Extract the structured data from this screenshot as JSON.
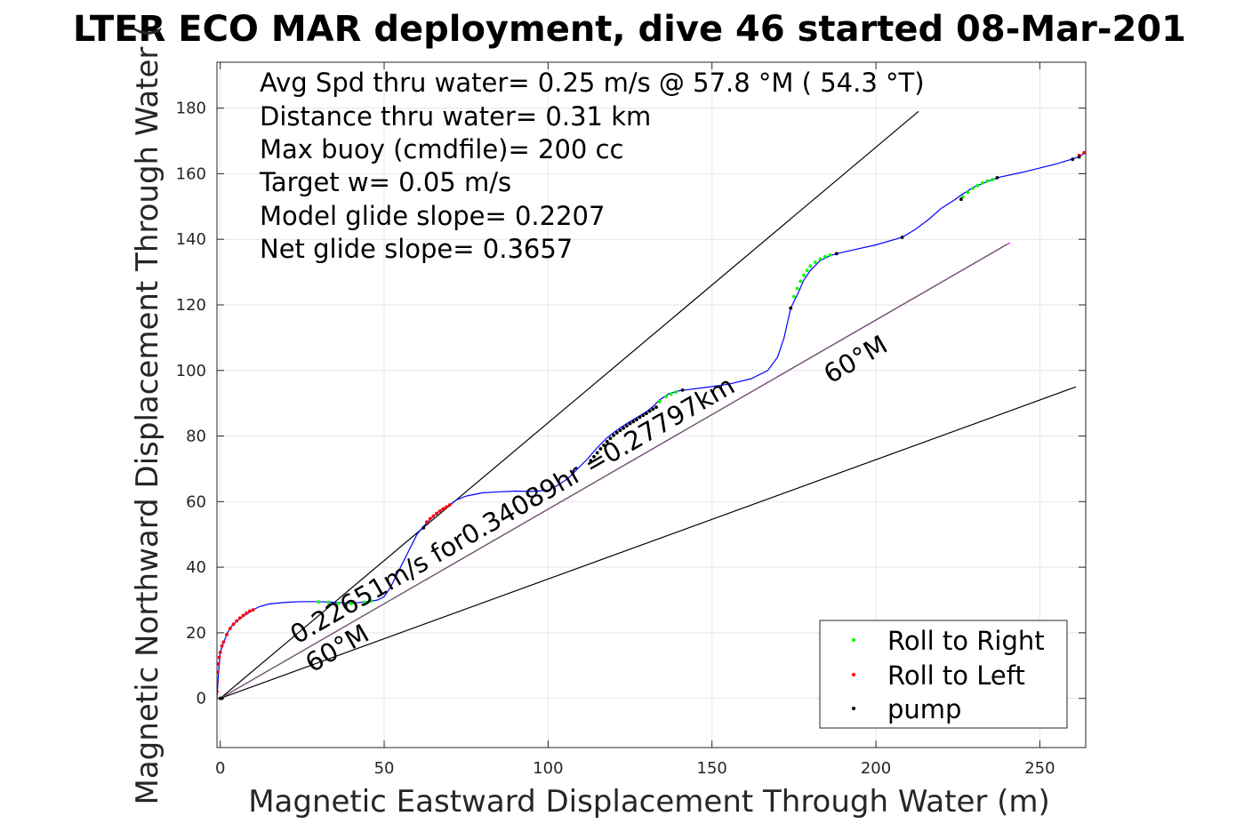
{
  "chart_data": {
    "type": "line",
    "title": "LTER ECO MAR deployment, dive 46 started 08-Mar-201",
    "xlabel": "Magnetic Eastward Displacement Through Water (m)",
    "ylabel": "Magnetic Northward Displacement Through Water (",
    "xlim": [
      -1,
      264
    ],
    "ylim": [
      -15,
      194
    ],
    "xticks": [
      0,
      50,
      100,
      150,
      200,
      250
    ],
    "yticks": [
      0,
      20,
      40,
      60,
      80,
      100,
      120,
      140,
      160,
      180
    ],
    "grid": true,
    "annotations": [
      "Avg Spd thru water=  0.25 m/s @  57.8 °M ( 54.3 °T)",
      "Distance thru water=  0.31 km",
      "Max buoy (cmdfile)= 200 cc",
      "Target w= 0.05 m/s",
      "Model glide slope= 0.2207",
      "Net glide slope= 0.3657"
    ],
    "rotated_labels": {
      "speed": "0.22651m/s for0.34089hr =0.27797km",
      "heading_upper": "60°M",
      "heading_lower": "60°M"
    },
    "legend": {
      "position": "bottom-right",
      "entries": [
        "Roll to Right",
        "Roll to Left",
        "pump"
      ],
      "colors": [
        "#00ff00",
        "#ff0000",
        "#000000"
      ]
    },
    "reference_lines": [
      {
        "x": [
          0,
          213
        ],
        "y": [
          0,
          179
        ],
        "color": "#000000"
      },
      {
        "x": [
          0,
          261
        ],
        "y": [
          0,
          95
        ],
        "color": "#000000"
      },
      {
        "x": [
          0,
          241
        ],
        "y": [
          0,
          139
        ],
        "color": "#ff00ff"
      },
      {
        "x": [
          0,
          240
        ],
        "y": [
          0,
          138.5
        ],
        "color": "#5a5a5a"
      }
    ],
    "track": {
      "color": "#0000ff",
      "x": [
        -1,
        -0.5,
        0,
        1,
        2,
        3,
        5,
        7,
        9,
        10,
        12,
        15,
        20,
        25,
        30,
        35,
        40,
        45,
        48,
        50,
        52,
        55,
        58,
        60,
        62,
        65,
        67,
        70,
        72,
        75,
        80,
        85,
        90,
        95,
        100,
        103,
        106,
        109,
        112,
        115,
        118,
        121,
        124,
        127,
        130,
        132,
        134,
        137,
        140,
        143,
        148,
        155,
        162,
        167,
        170,
        172,
        174,
        176,
        178,
        180,
        183,
        186,
        188,
        192,
        200,
        208,
        212,
        216,
        220,
        224,
        226,
        230,
        235,
        238,
        245,
        255,
        260,
        262,
        264
      ],
      "y": [
        0,
        8,
        14,
        17,
        19.5,
        21.5,
        23.5,
        25,
        26.3,
        27,
        28,
        28.8,
        29.3,
        29.5,
        29.5,
        29.3,
        29,
        29.5,
        30,
        31,
        34,
        40,
        46,
        50,
        52.5,
        55.5,
        57.3,
        59,
        60.5,
        61.7,
        62.7,
        63,
        63.2,
        63.1,
        63.5,
        65,
        67,
        70,
        73,
        76.5,
        79.5,
        81.8,
        83.8,
        85.6,
        87.4,
        89,
        91,
        93,
        93.8,
        94.2,
        94.8,
        95.8,
        97.5,
        100,
        104,
        110,
        119,
        123,
        127.5,
        130.5,
        133.5,
        135,
        135.6,
        136.5,
        138.3,
        140.6,
        143,
        146,
        149.5,
        152,
        153.5,
        156,
        158,
        159,
        160.5,
        163,
        164.5,
        165.2,
        166.5
      ]
    },
    "points": {
      "roll_right": {
        "color": "#00ff00",
        "x": [
          30,
          33,
          36,
          40,
          44,
          46,
          134,
          136,
          137.5,
          139,
          175,
          176,
          177,
          178,
          179,
          180,
          181.5,
          183,
          184.5,
          186,
          226.5,
          228,
          229.5,
          231,
          232.5,
          234,
          235.5
        ],
        "y": [
          29.4,
          29.3,
          29,
          28.9,
          29.3,
          29.7,
          90.5,
          92,
          92.8,
          93.4,
          122.5,
          125,
          127.2,
          129,
          130.5,
          131.8,
          133,
          134,
          134.7,
          135.2,
          153,
          154.3,
          155.5,
          156.4,
          157.2,
          157.8,
          158.2
        ]
      },
      "roll_left": {
        "color": "#ff0000",
        "x": [
          -1,
          -1,
          -0.8,
          -0.6,
          -0.3,
          0,
          0.5,
          1,
          2,
          3,
          4,
          5,
          6,
          7,
          8,
          9,
          10,
          63,
          64,
          65,
          66,
          67,
          68,
          69,
          70,
          262,
          263.5
        ],
        "y": [
          2,
          5,
          8,
          10.5,
          12.5,
          14,
          16,
          17.2,
          19.5,
          21.3,
          22.6,
          23.6,
          24.5,
          25.3,
          26,
          26.6,
          27,
          53.8,
          54.8,
          55.6,
          56.4,
          57.1,
          57.8,
          58.4,
          59,
          165.6,
          166.4
        ]
      },
      "pump": {
        "color": "#000000",
        "x": [
          0,
          0.5,
          62,
          113,
          114,
          115,
          116,
          117,
          118,
          119,
          120,
          121,
          122,
          123,
          124,
          125,
          126,
          127,
          128,
          129,
          130,
          131,
          132,
          133,
          141,
          174,
          188,
          208,
          226,
          237,
          260,
          262
        ],
        "y": [
          0,
          0,
          52,
          72.5,
          73.7,
          74.9,
          76.1,
          77.2,
          78.3,
          79.3,
          80.2,
          81,
          81.7,
          82.4,
          83.1,
          83.8,
          84.4,
          85,
          85.7,
          86.3,
          86.9,
          87.6,
          88.2,
          88.8,
          94,
          119,
          135.6,
          140.6,
          152.2,
          158.8,
          164.4,
          165.1
        ]
      }
    }
  }
}
